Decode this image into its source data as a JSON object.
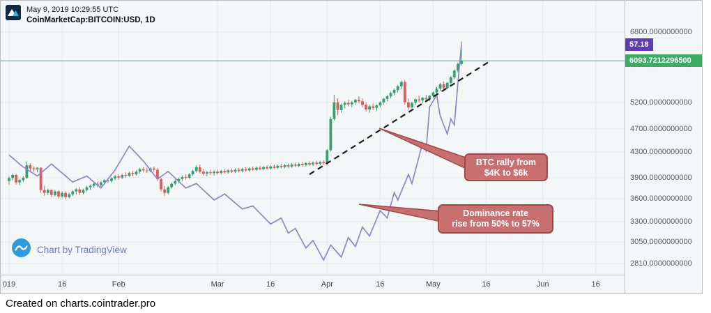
{
  "header": {
    "timestamp": "May 9, 2019 10:29:55 UTC",
    "symbol_line": "CoinMarketCap:BITCOIN:USD, 1D"
  },
  "attribution": {
    "text": "Chart by TradingView"
  },
  "footer": {
    "text": "Created on charts.cointrader.pro"
  },
  "badges": {
    "dominance_value": "57.18",
    "current_price": "6093.7212296500"
  },
  "colors": {
    "background": "#f4f7f8",
    "grid": "#e5eaed",
    "candle_up": "#33a06f",
    "candle_down": "#e05c5c",
    "dominance_line": "#8f85c9",
    "trendline": "#1a1a1a",
    "current_price_line": "#43a893",
    "badge_price_bg": "#3cab64",
    "badge_dominance_bg": "#5d3db0",
    "callout_fill": "#c87070",
    "callout_border": "#a04848",
    "axis_text": "#575c61",
    "time_text": "#3c4247",
    "attribution_text": "#6b79c9",
    "border": "#b7bdc2"
  },
  "chart_data": {
    "type": "candlestick",
    "title": "CoinMarketCap:BITCOIN:USD, 1D",
    "interval": "1D",
    "series_start": "2019-01-01",
    "price_scale": "log",
    "current_price": 6093.72122965,
    "price_axis_labels": [
      "6800.0000000000",
      "5200.0000000000",
      "4700.0000000000",
      "4300.0000000000",
      "3900.0000000000",
      "3600.0000000000",
      "3300.0000000000",
      "3050.0000000000",
      "2810.0000000000"
    ],
    "time_ticks": [
      {
        "label": "019",
        "day": 0
      },
      {
        "label": "16",
        "day": 15
      },
      {
        "label": "Feb",
        "day": 31
      },
      {
        "label": "Mar",
        "day": 59
      },
      {
        "label": "16",
        "day": 74
      },
      {
        "label": "Apr",
        "day": 90
      },
      {
        "label": "16",
        "day": 105
      },
      {
        "label": "May",
        "day": 120
      },
      {
        "label": "16",
        "day": 135
      },
      {
        "label": "Jun",
        "day": 151
      },
      {
        "label": "16",
        "day": 166
      }
    ],
    "candles_ohlc": [
      [
        3850,
        3920,
        3800,
        3895
      ],
      [
        3895,
        3960,
        3860,
        3940
      ],
      [
        3940,
        3960,
        3800,
        3830
      ],
      [
        3830,
        3880,
        3790,
        3865
      ],
      [
        3865,
        3920,
        3840,
        3900
      ],
      [
        3900,
        4150,
        3880,
        4090
      ],
      [
        4090,
        4120,
        4000,
        4040
      ],
      [
        4040,
        4070,
        3990,
        4025
      ],
      [
        4025,
        4060,
        3980,
        4050
      ],
      [
        4050,
        4060,
        3680,
        3720
      ],
      [
        3720,
        3780,
        3640,
        3680
      ],
      [
        3680,
        3740,
        3650,
        3720
      ],
      [
        3720,
        3730,
        3620,
        3650
      ],
      [
        3650,
        3720,
        3630,
        3700
      ],
      [
        3700,
        3720,
        3600,
        3630
      ],
      [
        3630,
        3700,
        3610,
        3680
      ],
      [
        3680,
        3700,
        3590,
        3620
      ],
      [
        3620,
        3680,
        3600,
        3660
      ],
      [
        3660,
        3720,
        3640,
        3700
      ],
      [
        3700,
        3750,
        3660,
        3730
      ],
      [
        3730,
        3760,
        3650,
        3680
      ],
      [
        3680,
        3740,
        3660,
        3720
      ],
      [
        3720,
        3780,
        3700,
        3760
      ],
      [
        3760,
        3800,
        3720,
        3780
      ],
      [
        3780,
        3830,
        3750,
        3810
      ],
      [
        3810,
        3840,
        3760,
        3790
      ],
      [
        3790,
        3850,
        3770,
        3830
      ],
      [
        3830,
        3880,
        3800,
        3860
      ],
      [
        3860,
        3900,
        3820,
        3850
      ],
      [
        3850,
        3910,
        3830,
        3890
      ],
      [
        3890,
        3940,
        3860,
        3920
      ],
      [
        3920,
        3950,
        3870,
        3900
      ],
      [
        3900,
        3960,
        3880,
        3940
      ],
      [
        3940,
        3980,
        3900,
        3930
      ],
      [
        3930,
        3990,
        3910,
        3970
      ],
      [
        3970,
        4000,
        3920,
        3950
      ],
      [
        3950,
        4010,
        3930,
        3990
      ],
      [
        3990,
        4050,
        3960,
        4030
      ],
      [
        4030,
        4060,
        3980,
        4010
      ],
      [
        4010,
        4050,
        3970,
        4000
      ],
      [
        4000,
        4060,
        3980,
        4040
      ],
      [
        4040,
        4070,
        3990,
        4020
      ],
      [
        4020,
        4050,
        3850,
        3880
      ],
      [
        3880,
        3900,
        3700,
        3730
      ],
      [
        3730,
        3780,
        3640,
        3680
      ],
      [
        3680,
        3780,
        3660,
        3760
      ],
      [
        3760,
        3830,
        3740,
        3810
      ],
      [
        3810,
        3870,
        3790,
        3850
      ],
      [
        3850,
        3900,
        3820,
        3880
      ],
      [
        3880,
        3930,
        3850,
        3910
      ],
      [
        3910,
        3950,
        3870,
        3900
      ],
      [
        3900,
        3970,
        3880,
        3950
      ],
      [
        3950,
        4020,
        3930,
        4000
      ],
      [
        4000,
        4090,
        3980,
        4060
      ],
      [
        4060,
        4100,
        3960,
        3990
      ],
      [
        3990,
        4030,
        3930,
        3960
      ],
      [
        3960,
        4000,
        3920,
        3980
      ],
      [
        3980,
        4020,
        3940,
        3970
      ],
      [
        3970,
        4010,
        3930,
        3990
      ],
      [
        3990,
        4020,
        3950,
        3970
      ],
      [
        3970,
        4020,
        3950,
        4000
      ],
      [
        4000,
        4030,
        3960,
        3980
      ],
      [
        3980,
        4030,
        3960,
        4010
      ],
      [
        4010,
        4040,
        3970,
        3990
      ],
      [
        3990,
        4040,
        3970,
        4020
      ],
      [
        4020,
        4050,
        3980,
        4000
      ],
      [
        4000,
        4050,
        3980,
        4030
      ],
      [
        4030,
        4060,
        3990,
        4010
      ],
      [
        4010,
        4060,
        3990,
        4040
      ],
      [
        4040,
        4070,
        4000,
        4020
      ],
      [
        4020,
        4070,
        4000,
        4050
      ],
      [
        4050,
        4080,
        4010,
        4030
      ],
      [
        4030,
        4080,
        4010,
        4060
      ],
      [
        4060,
        4090,
        4020,
        4040
      ],
      [
        4040,
        4090,
        4020,
        4070
      ],
      [
        4070,
        4100,
        4030,
        4050
      ],
      [
        4050,
        4100,
        4030,
        4080
      ],
      [
        4080,
        4110,
        4040,
        4060
      ],
      [
        4060,
        4110,
        4040,
        4090
      ],
      [
        4090,
        4120,
        4050,
        4070
      ],
      [
        4070,
        4120,
        4050,
        4100
      ],
      [
        4100,
        4130,
        4060,
        4080
      ],
      [
        4080,
        4130,
        4060,
        4110
      ],
      [
        4110,
        4140,
        4070,
        4090
      ],
      [
        4090,
        4140,
        4070,
        4120
      ],
      [
        4120,
        4150,
        4080,
        4100
      ],
      [
        4100,
        4150,
        4080,
        4130
      ],
      [
        4130,
        4160,
        4090,
        4110
      ],
      [
        4110,
        4160,
        4090,
        4140
      ],
      [
        4140,
        4170,
        4100,
        4120
      ],
      [
        4120,
        4350,
        4100,
        4330
      ],
      [
        4330,
        4920,
        4310,
        4880
      ],
      [
        4880,
        5350,
        4850,
        5200
      ],
      [
        5200,
        5280,
        4950,
        5050
      ],
      [
        5050,
        5180,
        5000,
        5150
      ],
      [
        5150,
        5220,
        5080,
        5190
      ],
      [
        5190,
        5250,
        5120,
        5160
      ],
      [
        5160,
        5230,
        5100,
        5200
      ],
      [
        5200,
        5270,
        5150,
        5250
      ],
      [
        5250,
        5320,
        5180,
        5220
      ],
      [
        5220,
        5280,
        5100,
        5150
      ],
      [
        5150,
        5200,
        5020,
        5060
      ],
      [
        5060,
        5150,
        5000,
        5120
      ],
      [
        5120,
        5180,
        5050,
        5090
      ],
      [
        5090,
        5160,
        5030,
        5140
      ],
      [
        5140,
        5220,
        5100,
        5200
      ],
      [
        5200,
        5290,
        5160,
        5270
      ],
      [
        5270,
        5350,
        5220,
        5320
      ],
      [
        5320,
        5420,
        5280,
        5390
      ],
      [
        5390,
        5480,
        5340,
        5450
      ],
      [
        5450,
        5560,
        5400,
        5530
      ],
      [
        5530,
        5650,
        5460,
        5620
      ],
      [
        5620,
        5660,
        5150,
        5200
      ],
      [
        5200,
        5280,
        5050,
        5100
      ],
      [
        5100,
        5210,
        5080,
        5190
      ],
      [
        5190,
        5280,
        5150,
        5260
      ],
      [
        5260,
        5330,
        5200,
        5240
      ],
      [
        5240,
        5310,
        5180,
        5290
      ],
      [
        5290,
        5350,
        5230,
        5260
      ],
      [
        5260,
        5350,
        5220,
        5330
      ],
      [
        5330,
        5420,
        5280,
        5400
      ],
      [
        5400,
        5510,
        5360,
        5480
      ],
      [
        5480,
        5600,
        5430,
        5570
      ],
      [
        5570,
        5630,
        5460,
        5490
      ],
      [
        5490,
        5620,
        5470,
        5600
      ],
      [
        5600,
        5750,
        5560,
        5720
      ],
      [
        5720,
        5900,
        5680,
        5870
      ],
      [
        5870,
        6050,
        5830,
        6020
      ],
      [
        6020,
        6560,
        5980,
        6093.72
      ]
    ],
    "dominance_overlay": {
      "name": "BTC dominance",
      "unit": "%",
      "current_value": 57.18,
      "points_day_pct": [
        [
          0,
          53.5
        ],
        [
          4,
          53.1
        ],
        [
          8,
          52.8
        ],
        [
          12,
          53.2
        ],
        [
          15,
          52.9
        ],
        [
          18,
          52.6
        ],
        [
          22,
          52.8
        ],
        [
          26,
          52.4
        ],
        [
          30,
          53.0
        ],
        [
          34,
          53.8
        ],
        [
          38,
          53.3
        ],
        [
          42,
          52.7
        ],
        [
          45,
          52.95
        ],
        [
          50,
          52.4
        ],
        [
          53,
          52.55
        ],
        [
          58,
          52.0
        ],
        [
          61,
          52.2
        ],
        [
          66,
          51.7
        ],
        [
          69,
          51.8
        ],
        [
          74,
          51.2
        ],
        [
          77,
          51.4
        ],
        [
          79,
          50.9
        ],
        [
          81,
          51.05
        ],
        [
          84,
          50.4
        ],
        [
          86,
          50.65
        ],
        [
          89,
          50.0
        ],
        [
          91,
          50.5
        ],
        [
          94,
          50.1
        ],
        [
          96,
          50.75
        ],
        [
          98,
          50.45
        ],
        [
          100,
          51.1
        ],
        [
          102,
          50.8
        ],
        [
          105,
          51.65
        ],
        [
          107,
          51.4
        ],
        [
          109,
          52.25
        ],
        [
          110,
          52.0
        ],
        [
          113,
          52.85
        ],
        [
          114,
          52.55
        ],
        [
          117,
          53.9
        ],
        [
          118,
          53.65
        ],
        [
          119,
          55.1
        ],
        [
          121,
          55.5
        ],
        [
          122,
          54.8
        ],
        [
          124,
          54.2
        ],
        [
          125,
          54.7
        ],
        [
          126,
          54.5
        ],
        [
          127,
          55.9
        ],
        [
          128,
          57.18
        ]
      ]
    },
    "trendline": {
      "style": "dashed",
      "from_day": 85,
      "from_price": 3950,
      "to_day": 136,
      "to_price": 6080
    },
    "annotations": [
      {
        "lines": [
          "BTC rally from",
          "$4K to $6k"
        ]
      },
      {
        "lines": [
          "Dominance rate",
          "rise from 50% to 57%"
        ]
      }
    ]
  }
}
